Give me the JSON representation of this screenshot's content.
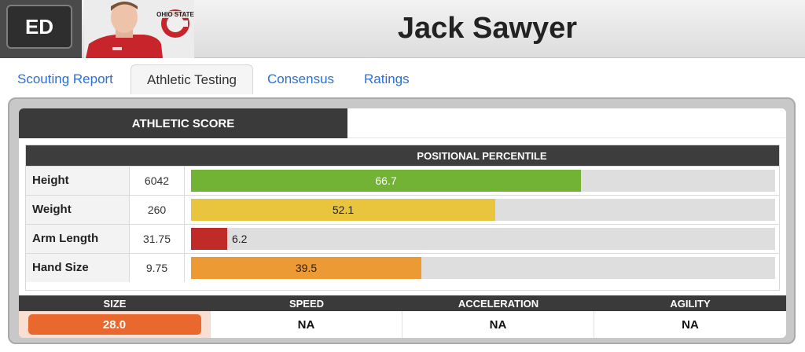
{
  "header": {
    "position": "ED",
    "player_name": "Jack Sawyer",
    "school_logo_text": "OHIO STATE"
  },
  "tabs": [
    {
      "label": "Scouting Report",
      "active": false
    },
    {
      "label": "Athletic Testing",
      "active": true
    },
    {
      "label": "Consensus",
      "active": false
    },
    {
      "label": "Ratings",
      "active": false
    }
  ],
  "athletic": {
    "section_title": "ATHLETIC SCORE",
    "percentile_header": "POSITIONAL PERCENTILE",
    "measurements": [
      {
        "label": "Height",
        "value": "6042",
        "percentile": "66.7",
        "pct_num": 66.7,
        "color": "#72b234",
        "text_color": "#ffffff"
      },
      {
        "label": "Weight",
        "value": "260",
        "percentile": "52.1",
        "pct_num": 52.1,
        "color": "#e8c53c",
        "text_color": "#222222"
      },
      {
        "label": "Arm Length",
        "value": "31.75",
        "percentile": "6.2",
        "pct_num": 6.2,
        "color": "#bf2b27",
        "text_color": "#222222"
      },
      {
        "label": "Hand Size",
        "value": "9.75",
        "percentile": "39.5",
        "pct_num": 39.5,
        "color": "#ec9a33",
        "text_color": "#222222"
      }
    ],
    "scores": [
      {
        "label": "SIZE",
        "value": "28.0",
        "color": "#e8682d"
      },
      {
        "label": "SPEED",
        "value": "NA"
      },
      {
        "label": "ACCELERATION",
        "value": "NA"
      },
      {
        "label": "AGILITY",
        "value": "NA"
      }
    ]
  }
}
